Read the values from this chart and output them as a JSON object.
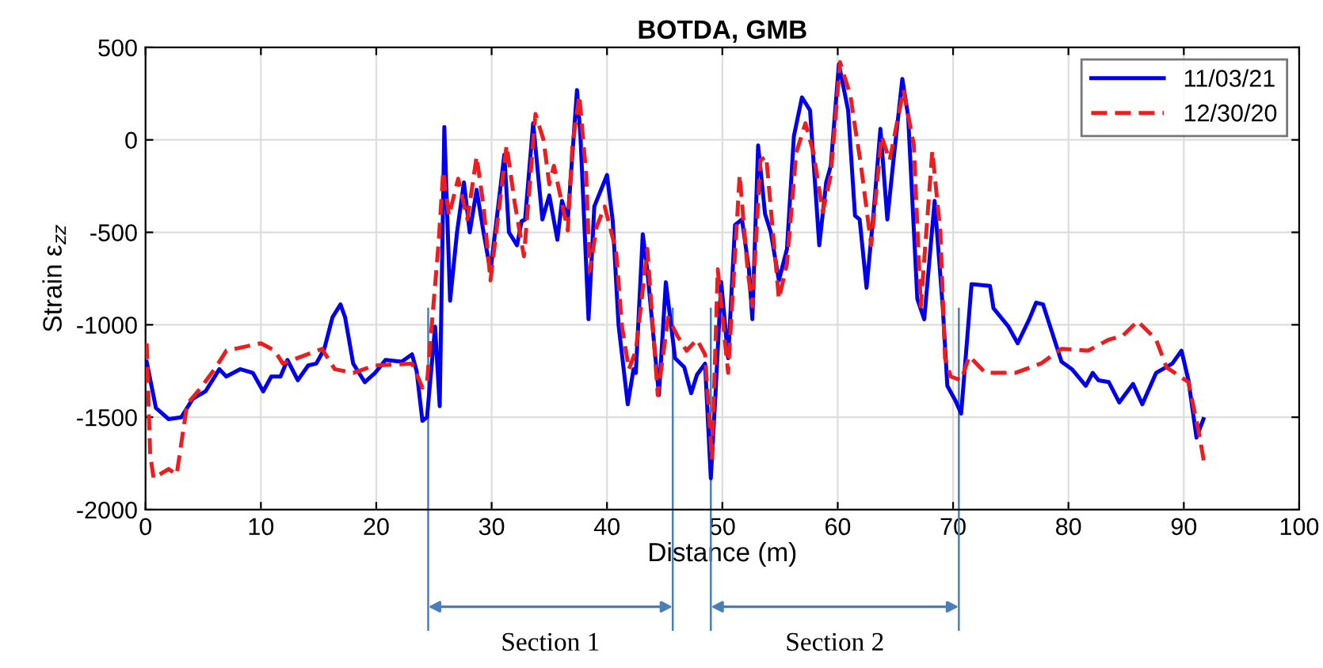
{
  "chart_data": {
    "type": "line",
    "title": "BOTDA, GMB",
    "xlabel": "Distance (m)",
    "ylabel": "Strain ε$_{zz}$",
    "xlim": [
      0,
      100
    ],
    "xticks": [
      0,
      10,
      20,
      30,
      40,
      50,
      60,
      70,
      80,
      90,
      100
    ],
    "ylim": [
      -2000,
      500
    ],
    "yticks": [
      -2000,
      -1500,
      -1000,
      -500,
      0,
      500
    ],
    "grid": true,
    "legend": "top right",
    "marker": "none",
    "ref_lines": [
      {
        "axis": "x",
        "value": 24.5,
        "color": "#4a7ebb"
      },
      {
        "axis": "x",
        "value": 45.7,
        "color": "#4a7ebb"
      },
      {
        "axis": "x",
        "value": 49.0,
        "color": "#4a7ebb"
      },
      {
        "axis": "x",
        "value": 70.5,
        "color": "#4a7ebb"
      }
    ],
    "annotations": [
      "Section 1",
      "Section 2"
    ],
    "series": [
      {
        "name": "11/03/21",
        "color": "#0000ee",
        "line_style": "solid",
        "x": [
          0.1,
          0.9,
          2.0,
          3.1,
          4.1,
          5.2,
          6.4,
          7.0,
          8.2,
          9.3,
          10.2,
          10.9,
          11.7,
          12.3,
          13.2,
          14.1,
          14.8,
          15.5,
          16.2,
          16.9,
          17.3,
          18.0,
          19.0,
          19.9,
          20.8,
          22.2,
          23.1,
          23.5,
          24.0,
          24.4,
          25.1,
          25.5,
          25.9,
          26.4,
          27.0,
          27.6,
          28.1,
          28.7,
          29.3,
          29.9,
          31.1,
          31.5,
          32.2,
          32.6,
          32.9,
          33.6,
          34.4,
          35.0,
          35.7,
          36.1,
          36.6,
          37.4,
          37.7,
          38.4,
          38.9,
          40.0,
          40.5,
          41.0,
          41.8,
          42.3,
          42.5,
          43.1,
          43.5,
          44.5,
          45.1,
          45.9,
          46.7,
          47.3,
          47.8,
          48.5,
          49.0,
          49.4,
          49.9,
          50.5,
          51.1,
          51.7,
          52.3,
          52.6,
          53.1,
          53.7,
          54.2,
          54.9,
          55.6,
          56.2,
          56.9,
          57.6,
          58.4,
          59.0,
          59.4,
          60.1,
          60.9,
          61.5,
          61.9,
          62.5,
          63.1,
          63.7,
          64.3,
          64.8,
          65.6,
          66.1,
          66.9,
          67.5,
          68.4,
          69.1,
          69.5,
          70.2,
          70.7,
          71.6,
          73.2,
          73.5,
          74.8,
          75.6,
          76.6,
          77.2,
          77.8,
          79.4,
          80.3,
          81.5,
          82.1,
          82.6,
          83.5,
          84.4,
          85.6,
          86.4,
          87.6,
          89.0,
          89.8,
          90.4,
          91.1,
          91.7
        ],
        "values": [
          -1200,
          -1450,
          -1510,
          -1500,
          -1400,
          -1360,
          -1240,
          -1280,
          -1240,
          -1260,
          -1360,
          -1280,
          -1280,
          -1190,
          -1300,
          -1220,
          -1210,
          -1130,
          -960,
          -890,
          -960,
          -1210,
          -1310,
          -1260,
          -1190,
          -1200,
          -1160,
          -1250,
          -1520,
          -1500,
          -1010,
          -1440,
          70,
          -870,
          -500,
          -230,
          -500,
          -270,
          -500,
          -710,
          -80,
          -500,
          -570,
          -440,
          -430,
          90,
          -430,
          -300,
          -540,
          -330,
          -430,
          270,
          20,
          -970,
          -360,
          -190,
          -440,
          -1000,
          -1430,
          -1240,
          -1260,
          -510,
          -710,
          -1380,
          -770,
          -1180,
          -1230,
          -1370,
          -1270,
          -1210,
          -1830,
          -1380,
          -770,
          -1180,
          -460,
          -430,
          -700,
          -970,
          -30,
          -400,
          -500,
          -760,
          -590,
          20,
          230,
          160,
          -570,
          -230,
          -140,
          410,
          160,
          -410,
          -430,
          -800,
          -400,
          60,
          -430,
          -130,
          330,
          130,
          -860,
          -970,
          -330,
          -900,
          -1330,
          -1410,
          -1480,
          -780,
          -790,
          -910,
          -1010,
          -1100,
          -970,
          -880,
          -890,
          -1200,
          -1240,
          -1330,
          -1260,
          -1300,
          -1310,
          -1420,
          -1320,
          -1430,
          -1260,
          -1210,
          -1140,
          -1300,
          -1610,
          -1510
        ]
      },
      {
        "name": "12/30/20",
        "color": "#ee1c1c",
        "line_style": "dashed",
        "x": [
          0.1,
          0.4,
          0.7,
          2.0,
          2.7,
          3.6,
          4.8,
          6.1,
          7.0,
          10.0,
          11.2,
          11.9,
          15.3,
          16.4,
          18.0,
          19.9,
          23.1,
          24.0,
          24.4,
          25.4,
          25.8,
          26.3,
          27.1,
          27.9,
          28.7,
          29.3,
          29.9,
          31.3,
          32.0,
          32.8,
          33.8,
          34.5,
          35.0,
          35.4,
          36.6,
          37.0,
          37.6,
          38.2,
          38.5,
          39.1,
          39.8,
          40.5,
          40.8,
          41.3,
          41.9,
          42.5,
          43.5,
          44.4,
          45.3,
          46.1,
          46.9,
          47.8,
          48.5,
          49.1,
          49.6,
          50.5,
          51.5,
          52.2,
          52.6,
          53.3,
          53.8,
          54.9,
          55.6,
          56.4,
          57.2,
          57.9,
          58.7,
          59.4,
          60.2,
          61.1,
          61.5,
          62.0,
          62.9,
          63.8,
          64.5,
          65.7,
          66.6,
          67.2,
          68.2,
          68.9,
          69.3,
          69.8,
          70.7,
          71.4,
          72.8,
          75.4,
          77.6,
          79.4,
          81.7,
          83.5,
          84.7,
          86.0,
          87.6,
          88.5,
          90.4,
          91.3,
          91.8
        ],
        "values": [
          -1100,
          -1700,
          -1830,
          -1780,
          -1810,
          -1430,
          -1340,
          -1230,
          -1140,
          -1100,
          -1140,
          -1210,
          -1130,
          -1240,
          -1260,
          -1220,
          -1210,
          -1340,
          -1310,
          -560,
          -170,
          -410,
          -210,
          -430,
          -90,
          -360,
          -760,
          -30,
          -340,
          -630,
          140,
          0,
          -240,
          -140,
          -490,
          -30,
          240,
          -190,
          -710,
          -470,
          -360,
          -530,
          -610,
          -1010,
          -1240,
          -1140,
          -590,
          -1380,
          -960,
          -1060,
          -1140,
          -1080,
          -1160,
          -1730,
          -700,
          -1260,
          -190,
          -710,
          -900,
          -110,
          -90,
          -860,
          -670,
          -70,
          90,
          -70,
          -390,
          -190,
          420,
          240,
          70,
          -130,
          -570,
          20,
          -110,
          270,
          -30,
          -900,
          -60,
          -500,
          -1180,
          -1280,
          -1300,
          -1170,
          -1260,
          -1260,
          -1210,
          -1130,
          -1140,
          -1080,
          -1060,
          -980,
          -1080,
          -1230,
          -1310,
          -1580,
          -1760
        ]
      }
    ]
  }
}
